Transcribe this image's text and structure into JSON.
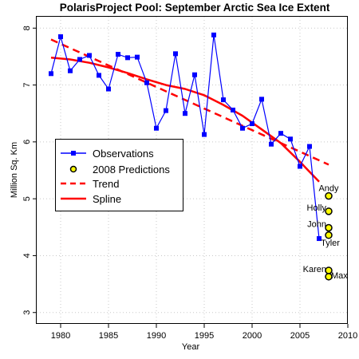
{
  "chart_data": {
    "type": "line",
    "title": "PolarisProject Pool: September Arctic Sea Ice Extent",
    "xlabel": "Year",
    "ylabel": "Million Sq. Km",
    "xlim": [
      1977.5,
      2010
    ],
    "ylim": [
      2.8,
      8.2
    ],
    "x_ticks": [
      1980,
      1985,
      1990,
      1995,
      2000,
      2005,
      2010
    ],
    "y_ticks": [
      3,
      4,
      5,
      6,
      7,
      8
    ],
    "grid": "dotted",
    "legend_position": "left",
    "legend": [
      "Observations",
      "2008 Predictions",
      "Trend",
      "Spline"
    ],
    "observations": {
      "name": "Observations",
      "color": "#0000ff",
      "x": [
        1979,
        1980,
        1981,
        1982,
        1983,
        1984,
        1985,
        1986,
        1987,
        1988,
        1989,
        1990,
        1991,
        1992,
        1993,
        1994,
        1995,
        1996,
        1997,
        1998,
        1999,
        2000,
        2001,
        2002,
        2003,
        2004,
        2005,
        2006,
        2007
      ],
      "y": [
        7.2,
        7.85,
        7.25,
        7.45,
        7.52,
        7.17,
        6.93,
        7.54,
        7.48,
        7.49,
        7.04,
        6.24,
        6.55,
        7.55,
        6.5,
        7.18,
        6.13,
        7.88,
        6.74,
        6.56,
        6.24,
        6.32,
        6.75,
        5.96,
        6.15,
        6.05,
        5.57,
        5.92,
        4.3
      ]
    },
    "predictions": {
      "name": "2008 Predictions",
      "color": "#ffff00",
      "x": 2008,
      "points": [
        {
          "label": "Andy",
          "y": 5.05
        },
        {
          "label": "Holly",
          "y": 4.78
        },
        {
          "label": "John",
          "y": 4.49
        },
        {
          "label": "Tyler",
          "y": 4.36
        },
        {
          "label": "Karen",
          "y": 3.74
        },
        {
          "label": "Max",
          "y": 3.63
        }
      ]
    },
    "trend": {
      "name": "Trend",
      "color": "#ff0000",
      "x": [
        1979,
        2008
      ],
      "y": [
        7.8,
        5.6
      ]
    },
    "spline": {
      "name": "Spline",
      "color": "#ff0000",
      "x": [
        1979,
        1981,
        1983,
        1985,
        1987,
        1989,
        1991,
        1993,
        1995,
        1997,
        1999,
        2001,
        2003,
        2005,
        2007
      ],
      "y": [
        7.48,
        7.45,
        7.39,
        7.31,
        7.21,
        7.1,
        7.0,
        6.93,
        6.82,
        6.65,
        6.46,
        6.22,
        5.98,
        5.65,
        5.3
      ]
    }
  }
}
